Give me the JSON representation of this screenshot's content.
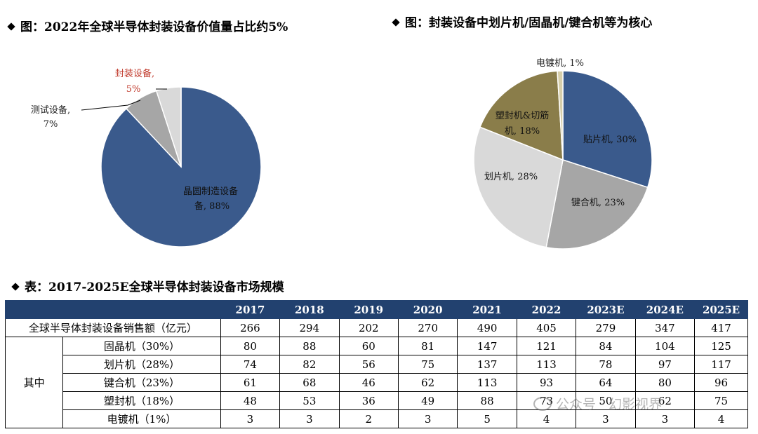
{
  "left_chart_title": "图：2022年全球半导体封装设备价值量占比约5%",
  "right_chart_title": "图：封装设备中划片机/固晶机/键合机等为核心",
  "table_title": "表：2017-2025E全球半导体封装设备市场规模",
  "chart_data": [
    {
      "type": "pie",
      "title": "图：2022年全球半导体封装设备价值量占比约5%",
      "slices": [
        {
          "label": "晶圆制造设备",
          "value": 88,
          "value_label": "88%",
          "color": "#3a5a8c"
        },
        {
          "label": "测试设备",
          "value": 7,
          "value_label": "7%",
          "color": "#a6a6a6"
        },
        {
          "label": "封装设备",
          "value": 5,
          "value_label": "5%",
          "color": "#d9d9d9",
          "label_color": "#c0392b"
        }
      ]
    },
    {
      "type": "pie",
      "title": "图：封装设备中划片机/固晶机/键合机等为核心",
      "slices": [
        {
          "label": "贴片机",
          "value": 30,
          "value_label": "30%",
          "color": "#3a5a8c"
        },
        {
          "label": "键合机",
          "value": 23,
          "value_label": "23%",
          "color": "#a6a6a6"
        },
        {
          "label": "划片机",
          "value": 28,
          "value_label": "28%",
          "color": "#d9d9d9"
        },
        {
          "label": "塑封机&切筋机",
          "value": 18,
          "value_label": "18%",
          "color": "#8a7d4a"
        },
        {
          "label": "电镀机",
          "value": 1,
          "value_label": "1%",
          "color": "#d6ceaa"
        }
      ]
    },
    {
      "type": "table",
      "title": "表：2017-2025E全球半导体封装设备市场规模",
      "columns": [
        "2017",
        "2018",
        "2019",
        "2020",
        "2021",
        "2022",
        "2023E",
        "2024E",
        "2025E"
      ],
      "total_row": {
        "label": "全球半导体封装设备销售额（亿元）",
        "values": [
          "266",
          "294",
          "202",
          "270",
          "490",
          "405",
          "279",
          "347",
          "417"
        ]
      },
      "group_label": "其中",
      "rows": [
        {
          "label": "固晶机（30%）",
          "values": [
            "80",
            "88",
            "60",
            "81",
            "147",
            "121",
            "84",
            "104",
            "125"
          ]
        },
        {
          "label": "划片机（28%）",
          "values": [
            "74",
            "82",
            "56",
            "75",
            "137",
            "113",
            "78",
            "97",
            "117"
          ]
        },
        {
          "label": "键合机（23%）",
          "values": [
            "61",
            "68",
            "46",
            "62",
            "113",
            "93",
            "64",
            "80",
            "96"
          ]
        },
        {
          "label": "塑封机（18%）",
          "values": [
            "48",
            "53",
            "36",
            "49",
            "88",
            "73",
            "50",
            "62",
            "75"
          ]
        },
        {
          "label": "电镀机（1%）",
          "values": [
            "3",
            "3",
            "2",
            "3",
            "5",
            "4",
            "3",
            "3",
            "4"
          ]
        }
      ]
    }
  ],
  "watermark": "公众号 · 幻影视界"
}
